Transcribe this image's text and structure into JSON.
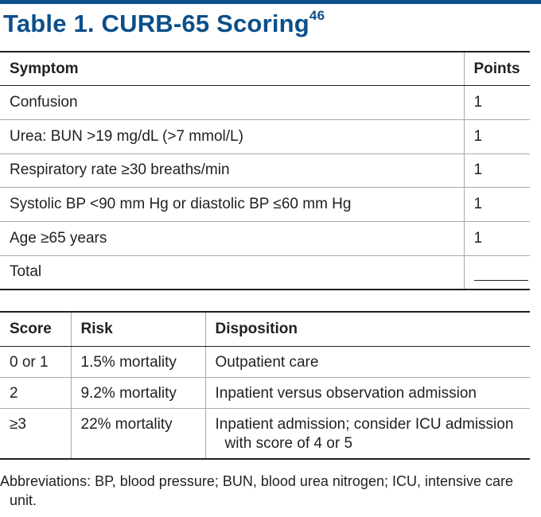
{
  "title": {
    "main": "Table 1. CURB-65 Scoring",
    "ref": "46"
  },
  "scoring_table": {
    "headers": {
      "symptom": "Symptom",
      "points": "Points"
    },
    "rows": [
      {
        "symptom": "Confusion",
        "points": "1"
      },
      {
        "symptom": "Urea: BUN >19 mg/dL (>7 mmol/L)",
        "points": "1"
      },
      {
        "symptom": "Respiratory rate ≥30 breaths/min",
        "points": "1"
      },
      {
        "symptom": "Systolic BP <90 mm Hg or diastolic BP ≤60 mm Hg",
        "points": "1"
      },
      {
        "symptom": "Age ≥65 years",
        "points": "1"
      },
      {
        "symptom": "Total",
        "points": ""
      }
    ]
  },
  "risk_table": {
    "headers": {
      "score": "Score",
      "risk": "Risk",
      "disposition": "Disposition"
    },
    "rows": [
      {
        "score": "0 or 1",
        "risk": "1.5% mortality",
        "disposition": "Outpatient care"
      },
      {
        "score": "2",
        "risk": "9.2% mortality",
        "disposition": "Inpatient versus observation admission"
      },
      {
        "score": "≥3",
        "risk": "22% mortality",
        "disposition": "Inpatient admission; consider ICU admission with score of 4 or 5"
      }
    ]
  },
  "footnote": "Abbreviations: BP, blood pressure; BUN, blood urea nitrogen; ICU, intensive care unit."
}
